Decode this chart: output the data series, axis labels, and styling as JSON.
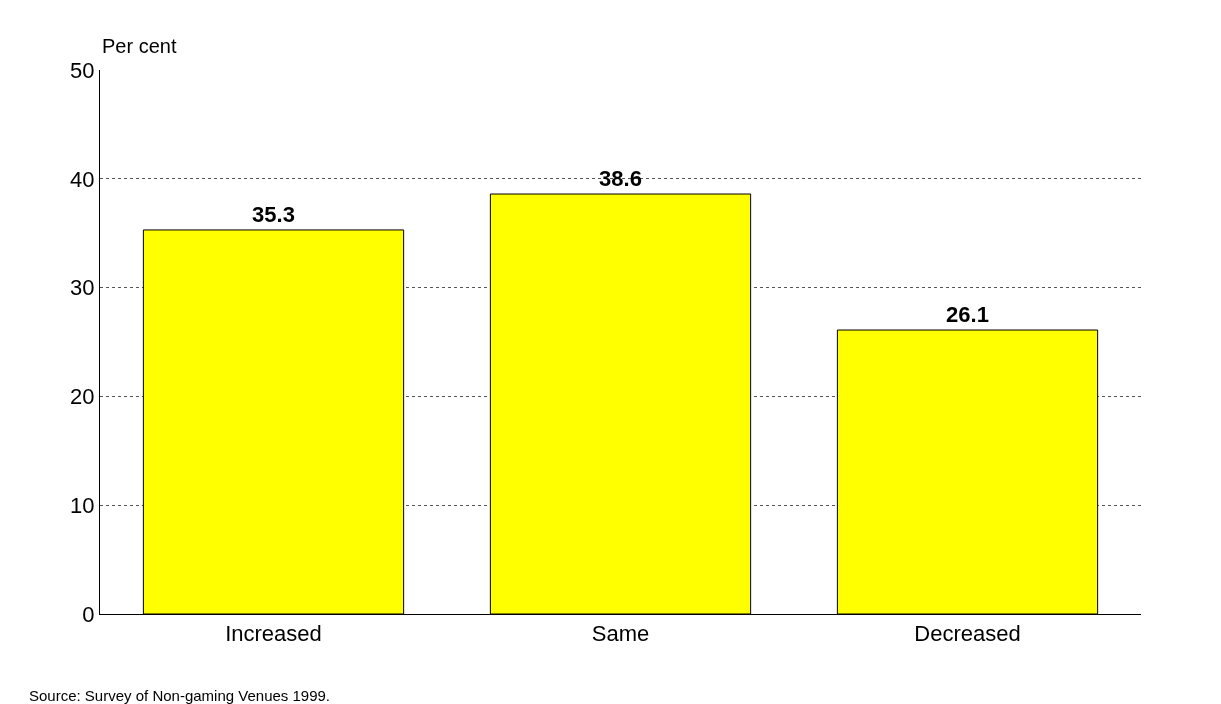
{
  "chart_data": {
    "type": "bar",
    "ylabel": "Per cent",
    "categories": [
      "Increased",
      "Same",
      "Decreased"
    ],
    "values": [
      35.3,
      38.6,
      26.1
    ],
    "color": "#ffff00",
    "data_labels": true,
    "ylim": [
      0,
      50
    ],
    "yticks": [
      0,
      10,
      20,
      30,
      40,
      50
    ],
    "grid": "y",
    "annotations": [
      "Source: Survey of Non-gaming Venues 1999."
    ]
  }
}
